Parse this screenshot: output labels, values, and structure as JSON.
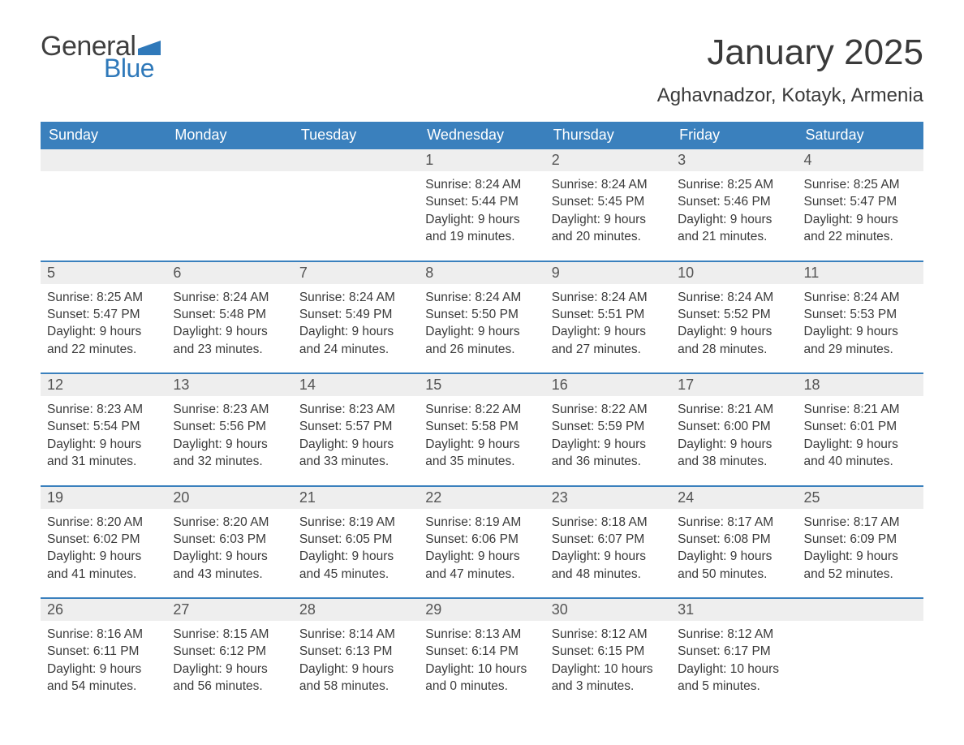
{
  "brand": {
    "word1": "General",
    "word2": "Blue",
    "flag_color": "#2f79ba",
    "text_gray": "#3f3f3f"
  },
  "title": "January 2025",
  "location": "Aghavnadzor, Kotayk, Armenia",
  "colors": {
    "header_bg": "#3a80bd",
    "header_text": "#ffffff",
    "daynum_bg": "#eeeeee",
    "week_border": "#3a80bd",
    "body_text": "#3a3a3a"
  },
  "days_of_week": [
    "Sunday",
    "Monday",
    "Tuesday",
    "Wednesday",
    "Thursday",
    "Friday",
    "Saturday"
  ],
  "weeks": [
    [
      {
        "n": "",
        "lines": []
      },
      {
        "n": "",
        "lines": []
      },
      {
        "n": "",
        "lines": []
      },
      {
        "n": "1",
        "lines": [
          "Sunrise: 8:24 AM",
          "Sunset: 5:44 PM",
          "Daylight: 9 hours",
          "and 19 minutes."
        ]
      },
      {
        "n": "2",
        "lines": [
          "Sunrise: 8:24 AM",
          "Sunset: 5:45 PM",
          "Daylight: 9 hours",
          "and 20 minutes."
        ]
      },
      {
        "n": "3",
        "lines": [
          "Sunrise: 8:25 AM",
          "Sunset: 5:46 PM",
          "Daylight: 9 hours",
          "and 21 minutes."
        ]
      },
      {
        "n": "4",
        "lines": [
          "Sunrise: 8:25 AM",
          "Sunset: 5:47 PM",
          "Daylight: 9 hours",
          "and 22 minutes."
        ]
      }
    ],
    [
      {
        "n": "5",
        "lines": [
          "Sunrise: 8:25 AM",
          "Sunset: 5:47 PM",
          "Daylight: 9 hours",
          "and 22 minutes."
        ]
      },
      {
        "n": "6",
        "lines": [
          "Sunrise: 8:24 AM",
          "Sunset: 5:48 PM",
          "Daylight: 9 hours",
          "and 23 minutes."
        ]
      },
      {
        "n": "7",
        "lines": [
          "Sunrise: 8:24 AM",
          "Sunset: 5:49 PM",
          "Daylight: 9 hours",
          "and 24 minutes."
        ]
      },
      {
        "n": "8",
        "lines": [
          "Sunrise: 8:24 AM",
          "Sunset: 5:50 PM",
          "Daylight: 9 hours",
          "and 26 minutes."
        ]
      },
      {
        "n": "9",
        "lines": [
          "Sunrise: 8:24 AM",
          "Sunset: 5:51 PM",
          "Daylight: 9 hours",
          "and 27 minutes."
        ]
      },
      {
        "n": "10",
        "lines": [
          "Sunrise: 8:24 AM",
          "Sunset: 5:52 PM",
          "Daylight: 9 hours",
          "and 28 minutes."
        ]
      },
      {
        "n": "11",
        "lines": [
          "Sunrise: 8:24 AM",
          "Sunset: 5:53 PM",
          "Daylight: 9 hours",
          "and 29 minutes."
        ]
      }
    ],
    [
      {
        "n": "12",
        "lines": [
          "Sunrise: 8:23 AM",
          "Sunset: 5:54 PM",
          "Daylight: 9 hours",
          "and 31 minutes."
        ]
      },
      {
        "n": "13",
        "lines": [
          "Sunrise: 8:23 AM",
          "Sunset: 5:56 PM",
          "Daylight: 9 hours",
          "and 32 minutes."
        ]
      },
      {
        "n": "14",
        "lines": [
          "Sunrise: 8:23 AM",
          "Sunset: 5:57 PM",
          "Daylight: 9 hours",
          "and 33 minutes."
        ]
      },
      {
        "n": "15",
        "lines": [
          "Sunrise: 8:22 AM",
          "Sunset: 5:58 PM",
          "Daylight: 9 hours",
          "and 35 minutes."
        ]
      },
      {
        "n": "16",
        "lines": [
          "Sunrise: 8:22 AM",
          "Sunset: 5:59 PM",
          "Daylight: 9 hours",
          "and 36 minutes."
        ]
      },
      {
        "n": "17",
        "lines": [
          "Sunrise: 8:21 AM",
          "Sunset: 6:00 PM",
          "Daylight: 9 hours",
          "and 38 minutes."
        ]
      },
      {
        "n": "18",
        "lines": [
          "Sunrise: 8:21 AM",
          "Sunset: 6:01 PM",
          "Daylight: 9 hours",
          "and 40 minutes."
        ]
      }
    ],
    [
      {
        "n": "19",
        "lines": [
          "Sunrise: 8:20 AM",
          "Sunset: 6:02 PM",
          "Daylight: 9 hours",
          "and 41 minutes."
        ]
      },
      {
        "n": "20",
        "lines": [
          "Sunrise: 8:20 AM",
          "Sunset: 6:03 PM",
          "Daylight: 9 hours",
          "and 43 minutes."
        ]
      },
      {
        "n": "21",
        "lines": [
          "Sunrise: 8:19 AM",
          "Sunset: 6:05 PM",
          "Daylight: 9 hours",
          "and 45 minutes."
        ]
      },
      {
        "n": "22",
        "lines": [
          "Sunrise: 8:19 AM",
          "Sunset: 6:06 PM",
          "Daylight: 9 hours",
          "and 47 minutes."
        ]
      },
      {
        "n": "23",
        "lines": [
          "Sunrise: 8:18 AM",
          "Sunset: 6:07 PM",
          "Daylight: 9 hours",
          "and 48 minutes."
        ]
      },
      {
        "n": "24",
        "lines": [
          "Sunrise: 8:17 AM",
          "Sunset: 6:08 PM",
          "Daylight: 9 hours",
          "and 50 minutes."
        ]
      },
      {
        "n": "25",
        "lines": [
          "Sunrise: 8:17 AM",
          "Sunset: 6:09 PM",
          "Daylight: 9 hours",
          "and 52 minutes."
        ]
      }
    ],
    [
      {
        "n": "26",
        "lines": [
          "Sunrise: 8:16 AM",
          "Sunset: 6:11 PM",
          "Daylight: 9 hours",
          "and 54 minutes."
        ]
      },
      {
        "n": "27",
        "lines": [
          "Sunrise: 8:15 AM",
          "Sunset: 6:12 PM",
          "Daylight: 9 hours",
          "and 56 minutes."
        ]
      },
      {
        "n": "28",
        "lines": [
          "Sunrise: 8:14 AM",
          "Sunset: 6:13 PM",
          "Daylight: 9 hours",
          "and 58 minutes."
        ]
      },
      {
        "n": "29",
        "lines": [
          "Sunrise: 8:13 AM",
          "Sunset: 6:14 PM",
          "Daylight: 10 hours",
          "and 0 minutes."
        ]
      },
      {
        "n": "30",
        "lines": [
          "Sunrise: 8:12 AM",
          "Sunset: 6:15 PM",
          "Daylight: 10 hours",
          "and 3 minutes."
        ]
      },
      {
        "n": "31",
        "lines": [
          "Sunrise: 8:12 AM",
          "Sunset: 6:17 PM",
          "Daylight: 10 hours",
          "and 5 minutes."
        ]
      },
      {
        "n": "",
        "lines": []
      }
    ]
  ]
}
